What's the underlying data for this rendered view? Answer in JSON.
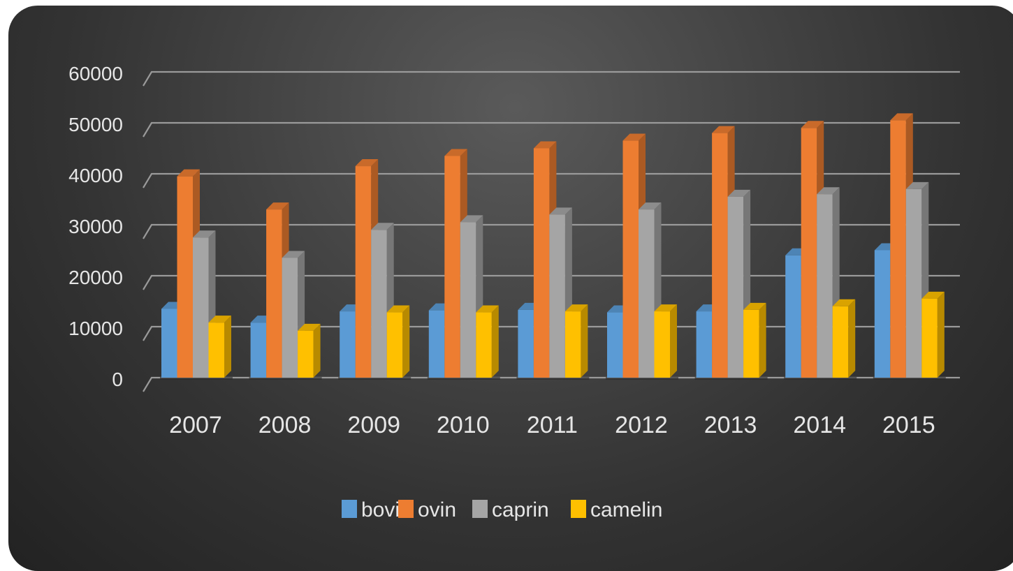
{
  "chart_data": {
    "type": "bar",
    "title": "",
    "xlabel": "",
    "ylabel": "",
    "categories": [
      "2007",
      "2008",
      "2009",
      "2010",
      "2011",
      "2012",
      "2013",
      "2014",
      "2015"
    ],
    "series": [
      {
        "name": "bovin",
        "color": "#5b9bd5",
        "values": [
          13500,
          10800,
          13000,
          13200,
          13300,
          12800,
          13000,
          24000,
          25000
        ]
      },
      {
        "name": "ovin",
        "color": "#ed7d31",
        "values": [
          39500,
          33000,
          41500,
          43500,
          45000,
          46500,
          48000,
          49000,
          50500
        ]
      },
      {
        "name": "caprin",
        "color": "#a5a5a5",
        "values": [
          27500,
          23500,
          29000,
          30500,
          32000,
          33000,
          35500,
          36000,
          37000
        ]
      },
      {
        "name": "camelin",
        "color": "#ffc000",
        "values": [
          10800,
          9200,
          12800,
          12800,
          13000,
          13000,
          13300,
          14000,
          15500
        ]
      }
    ],
    "y_ticks": [
      0,
      10000,
      20000,
      30000,
      40000,
      50000,
      60000
    ],
    "ylim": [
      0,
      60000
    ],
    "grid": true,
    "legend_position": "bottom"
  }
}
